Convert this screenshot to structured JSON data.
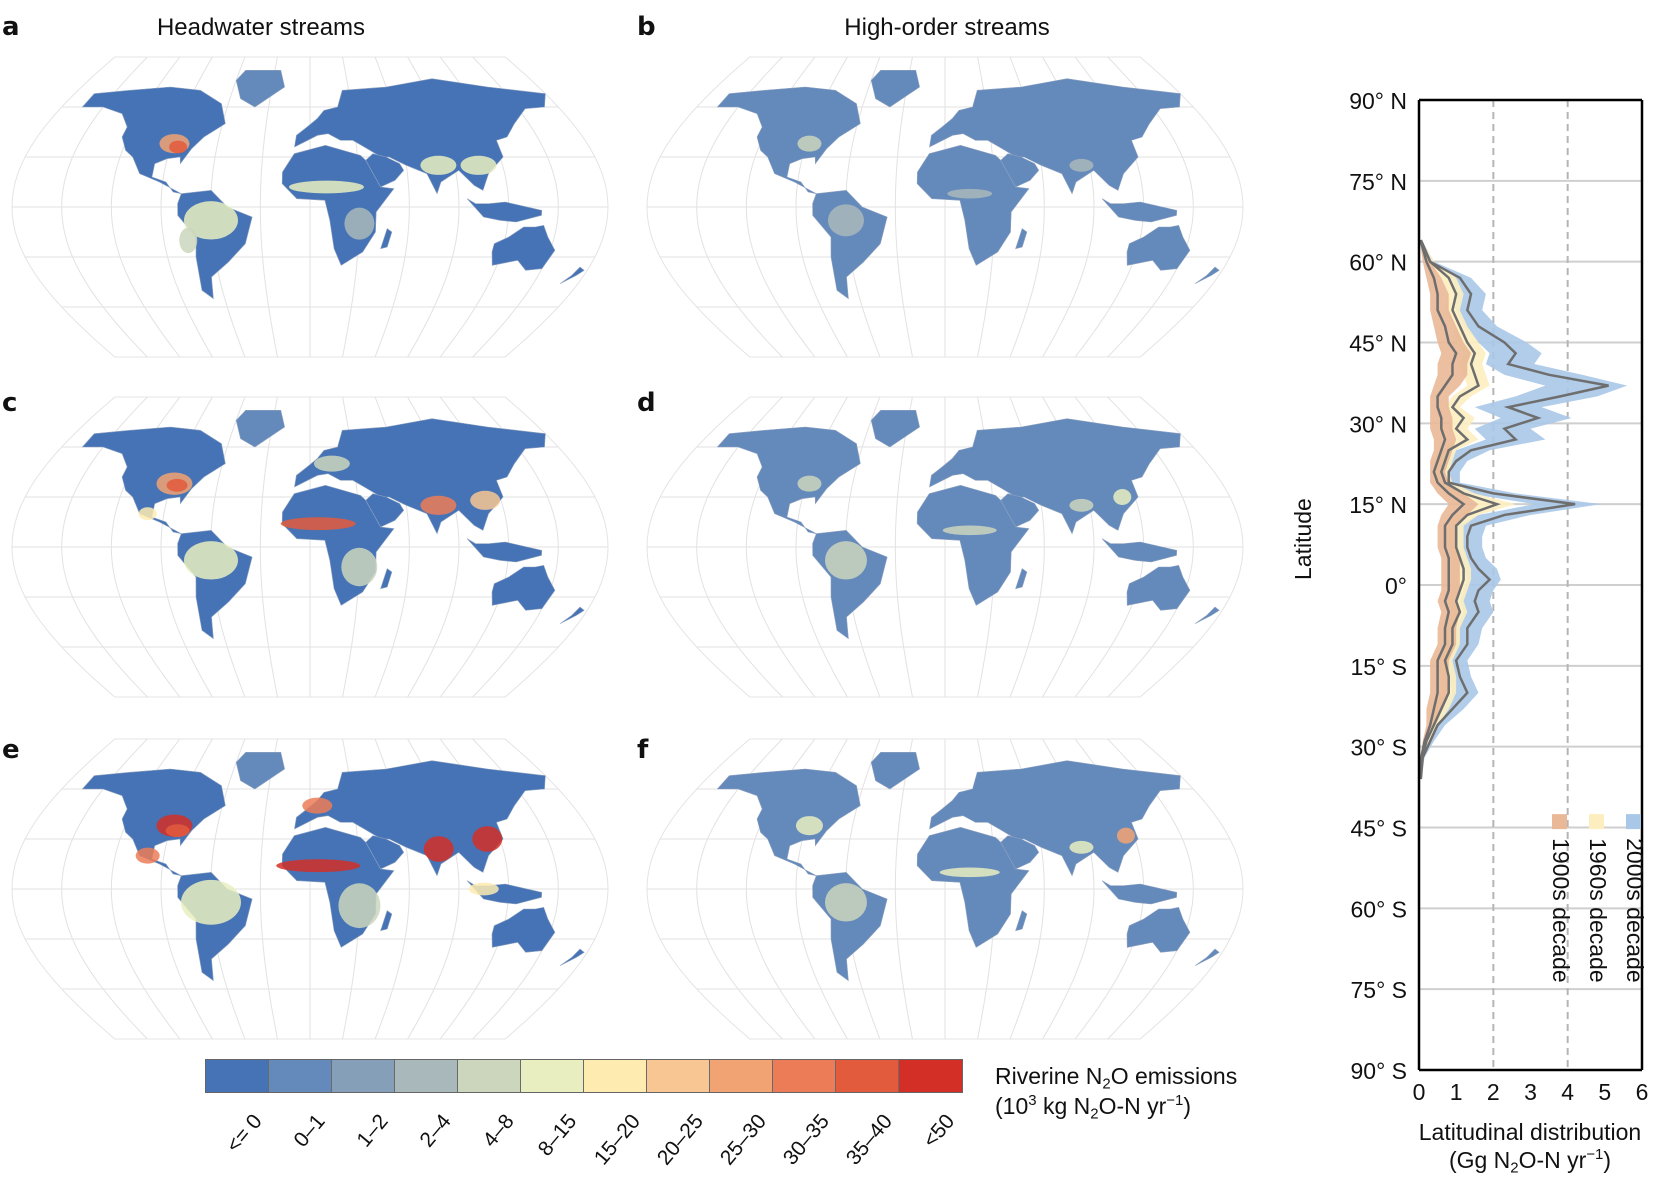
{
  "panels": [
    {
      "letter": "a",
      "column_title": "Headwater streams"
    },
    {
      "letter": "b",
      "column_title": "High-order streams"
    },
    {
      "letter": "c"
    },
    {
      "letter": "d"
    },
    {
      "letter": "e"
    },
    {
      "letter": "f"
    }
  ],
  "colorbar": {
    "title_line1_pre": "Riverine N",
    "title_line1_sub": "2",
    "title_line1_post": "O emissions",
    "title_line2_pre": "(10",
    "title_line2_sup": "3",
    "title_line2_mid": " kg N",
    "title_line2_sub": "2",
    "title_line2_mid2": "O-N yr",
    "title_line2_sup2": "−1",
    "title_line2_post": ")",
    "classes": [
      {
        "label": "<= 0",
        "color": "#4573b6"
      },
      {
        "label": "0–1",
        "color": "#6489bb"
      },
      {
        "label": "1–2",
        "color": "#869fb8"
      },
      {
        "label": "2–4",
        "color": "#a9b9bb"
      },
      {
        "label": "4–8",
        "color": "#cbd6bd"
      },
      {
        "label": "8–15",
        "color": "#e8eec0"
      },
      {
        "label": "15–20",
        "color": "#fdebb0"
      },
      {
        "label": "20–25",
        "color": "#f7c692"
      },
      {
        "label": "25–30",
        "color": "#f2a373"
      },
      {
        "label": "30–35",
        "color": "#ec7c57"
      },
      {
        "label": "35–40",
        "color": "#e35b3d"
      },
      {
        "label": "<50",
        "color": "#d42f26"
      }
    ]
  },
  "chart_data": {
    "type": "area",
    "orientation": "horizontal",
    "ylabel": "Latitude",
    "xlabel_line1": "Latitudinal distribution",
    "xlabel_line2_pre": "(Gg N",
    "xlabel_line2_sub": "2",
    "xlabel_line2_mid": "O-N yr",
    "xlabel_line2_sup": "−1",
    "xlabel_line2_post": ")",
    "xlim": [
      0,
      6
    ],
    "ylim": [
      -90,
      90
    ],
    "x_ticks": [
      "0",
      "1",
      "2",
      "3",
      "4",
      "5",
      "6"
    ],
    "y_ticks": [
      {
        "value": 90,
        "label": "90° N"
      },
      {
        "value": 75,
        "label": "75° N"
      },
      {
        "value": 60,
        "label": "60° N"
      },
      {
        "value": 45,
        "label": "45° N"
      },
      {
        "value": 30,
        "label": "30° N"
      },
      {
        "value": 15,
        "label": "15° N"
      },
      {
        "value": 0,
        "label": "0°"
      },
      {
        "value": -15,
        "label": "15° S"
      },
      {
        "value": -30,
        "label": "30° S"
      },
      {
        "value": -45,
        "label": "45° S"
      },
      {
        "value": -60,
        "label": "60° S"
      },
      {
        "value": -75,
        "label": "75° S"
      },
      {
        "value": -90,
        "label": "90° S"
      }
    ],
    "vertical_dashed_gridlines": [
      2,
      4
    ],
    "legend_position": "bottom-right",
    "latitudes": [
      64,
      60,
      57,
      54,
      51,
      48,
      45,
      43,
      41,
      39,
      37,
      35,
      33,
      31,
      29,
      27,
      25,
      23,
      21,
      19,
      17,
      15,
      13,
      11,
      9,
      7,
      5,
      3,
      1,
      -1,
      -3,
      -5,
      -8,
      -11,
      -14,
      -17,
      -20,
      -23,
      -26,
      -29,
      -32,
      -36
    ],
    "series": [
      {
        "name": "2000s decade",
        "color": "#a9c8e8",
        "values": [
          0.05,
          0.3,
          1.1,
          1.4,
          1.3,
          1.6,
          2.3,
          2.6,
          2.4,
          3.5,
          5.1,
          3.8,
          2.4,
          3.2,
          2.3,
          2.6,
          1.4,
          1.0,
          0.8,
          0.8,
          2.0,
          4.2,
          2.3,
          1.4,
          1.3,
          1.3,
          1.4,
          1.6,
          1.9,
          1.6,
          1.5,
          1.6,
          1.3,
          1.3,
          1.0,
          1.1,
          1.3,
          0.9,
          0.5,
          0.3,
          0.1,
          0.05
        ],
        "band_low": [
          0.04,
          0.2,
          0.8,
          1.0,
          1.0,
          1.2,
          1.6,
          1.9,
          1.8,
          2.3,
          3.4,
          2.6,
          1.5,
          2.2,
          1.5,
          1.8,
          1.0,
          0.7,
          0.6,
          0.6,
          1.3,
          3.1,
          1.6,
          1.0,
          1.0,
          1.0,
          1.1,
          1.2,
          1.3,
          1.2,
          1.1,
          1.2,
          1.0,
          1.0,
          0.7,
          0.8,
          0.9,
          0.6,
          0.3,
          0.2,
          0.08,
          0.04
        ],
        "band_high": [
          0.08,
          0.4,
          1.4,
          1.8,
          1.7,
          2.1,
          2.9,
          3.3,
          3.1,
          4.4,
          5.6,
          4.8,
          3.3,
          4.1,
          3.0,
          3.4,
          1.9,
          1.3,
          1.1,
          1.1,
          2.6,
          4.9,
          3.0,
          1.8,
          1.7,
          1.7,
          1.8,
          2.1,
          2.2,
          2.0,
          1.9,
          2.0,
          1.7,
          1.6,
          1.3,
          1.4,
          1.6,
          1.2,
          0.7,
          0.4,
          0.15,
          0.06
        ]
      },
      {
        "name": "1960s decade",
        "color": "#fdeec0",
        "values": [
          0.05,
          0.3,
          0.8,
          1.0,
          0.9,
          1.1,
          1.3,
          1.5,
          1.4,
          1.5,
          1.6,
          1.1,
          0.9,
          1.2,
          1.0,
          1.3,
          0.8,
          0.7,
          0.6,
          0.7,
          1.2,
          2.1,
          1.3,
          1.0,
          1.0,
          1.0,
          1.1,
          1.2,
          1.2,
          1.1,
          1.0,
          1.1,
          0.9,
          0.9,
          0.7,
          0.8,
          0.8,
          0.6,
          0.4,
          0.2,
          0.08,
          0.04
        ],
        "band_low": [
          0.03,
          0.2,
          0.6,
          0.8,
          0.7,
          0.9,
          1.0,
          1.2,
          1.1,
          1.2,
          1.3,
          0.9,
          0.7,
          0.9,
          0.8,
          1.0,
          0.6,
          0.5,
          0.5,
          0.5,
          0.9,
          1.6,
          1.0,
          0.8,
          0.8,
          0.8,
          0.9,
          0.9,
          0.9,
          0.9,
          0.8,
          0.9,
          0.7,
          0.7,
          0.5,
          0.6,
          0.6,
          0.4,
          0.3,
          0.15,
          0.06,
          0.03
        ],
        "band_high": [
          0.07,
          0.4,
          1.0,
          1.2,
          1.1,
          1.3,
          1.6,
          1.8,
          1.7,
          1.8,
          1.9,
          1.4,
          1.1,
          1.5,
          1.3,
          1.6,
          1.0,
          0.9,
          0.8,
          0.9,
          1.5,
          2.6,
          1.6,
          1.2,
          1.2,
          1.2,
          1.3,
          1.4,
          1.4,
          1.3,
          1.2,
          1.3,
          1.1,
          1.1,
          0.9,
          1.0,
          1.0,
          0.8,
          0.5,
          0.3,
          0.1,
          0.05
        ]
      },
      {
        "name": "1900s decade",
        "color": "#e9b896",
        "values": [
          0.04,
          0.2,
          0.4,
          0.5,
          0.5,
          0.7,
          0.8,
          1.0,
          0.9,
          0.9,
          0.7,
          0.5,
          0.5,
          0.6,
          0.6,
          0.7,
          0.6,
          0.5,
          0.4,
          0.5,
          0.8,
          1.2,
          0.9,
          0.7,
          0.7,
          0.7,
          0.8,
          0.8,
          0.8,
          0.8,
          0.7,
          0.8,
          0.7,
          0.7,
          0.5,
          0.5,
          0.5,
          0.4,
          0.3,
          0.15,
          0.06,
          0.03
        ],
        "band_low": [
          0.02,
          0.1,
          0.2,
          0.3,
          0.3,
          0.4,
          0.5,
          0.6,
          0.5,
          0.5,
          0.4,
          0.3,
          0.3,
          0.3,
          0.3,
          0.4,
          0.4,
          0.3,
          0.3,
          0.3,
          0.5,
          0.8,
          0.6,
          0.5,
          0.5,
          0.5,
          0.6,
          0.6,
          0.6,
          0.6,
          0.5,
          0.6,
          0.5,
          0.5,
          0.3,
          0.3,
          0.3,
          0.2,
          0.2,
          0.1,
          0.04,
          0.02
        ],
        "band_high": [
          0.06,
          0.3,
          0.6,
          0.8,
          0.8,
          1.0,
          1.2,
          1.4,
          1.3,
          1.3,
          1.1,
          0.8,
          0.8,
          0.9,
          0.9,
          1.0,
          0.9,
          0.8,
          0.7,
          0.8,
          1.2,
          1.6,
          1.3,
          1.0,
          1.0,
          1.0,
          1.1,
          1.1,
          1.1,
          1.1,
          1.0,
          1.1,
          1.0,
          1.0,
          0.8,
          0.8,
          0.8,
          0.6,
          0.4,
          0.2,
          0.08,
          0.04
        ]
      }
    ],
    "legend": [
      "1900s decade",
      "1960s decade",
      "2000s decade"
    ]
  }
}
